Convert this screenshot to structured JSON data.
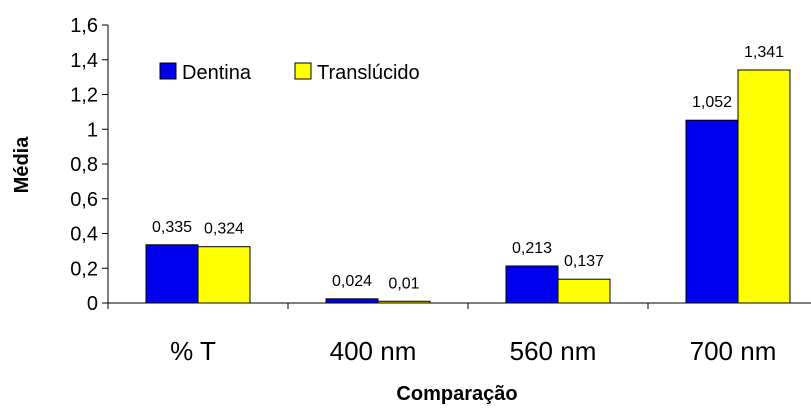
{
  "chart_data": {
    "type": "bar",
    "title": "",
    "xlabel": "Comparação",
    "ylabel": "Média",
    "categories": [
      "% T",
      "400 nm",
      "560 nm",
      "700 nm"
    ],
    "series": [
      {
        "name": "Dentina",
        "values": [
          0.335,
          0.024,
          0.213,
          1.052
        ],
        "labels": [
          "0,335",
          "0,024",
          "0,213",
          "1,052"
        ],
        "color": "#0000ee"
      },
      {
        "name": "Translúcido",
        "values": [
          0.324,
          0.01,
          0.137,
          1.341
        ],
        "labels": [
          "0,324",
          "0,01",
          "0,137",
          "1,341"
        ],
        "color": "#ffff00"
      }
    ],
    "ylim": [
      0,
      1.6
    ],
    "yticks": [
      0,
      0.2,
      0.4,
      0.6,
      0.8,
      1,
      1.2,
      1.4,
      1.6
    ],
    "ytick_labels": [
      "0",
      "0,2",
      "0,4",
      "0,6",
      "0,8",
      "1",
      "1,2",
      "1,4",
      "1,6"
    ],
    "grid": false,
    "legend_position": "top-left"
  }
}
